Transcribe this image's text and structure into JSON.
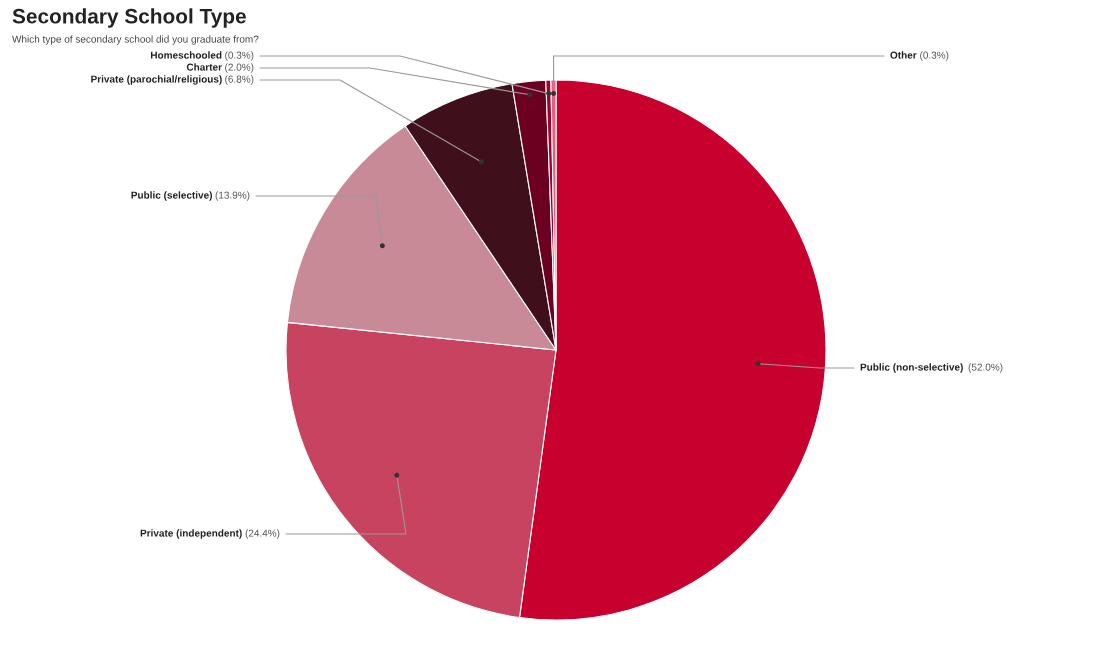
{
  "chart_data": {
    "type": "pie",
    "title": "Secondary School Type",
    "subtitle": "Which type of secondary school did you graduate from?",
    "categories": [
      "Public (non-selective)",
      "Private (independent)",
      "Public (selective)",
      "Private (parochial/religious)",
      "Charter",
      "Homeschooled",
      "Other"
    ],
    "values": [
      52.0,
      24.4,
      13.9,
      6.8,
      2.0,
      0.3,
      0.3
    ],
    "value_labels": [
      "(52.0%)",
      "(24.4%)",
      "(13.9%)",
      "(6.8%)",
      "(2.0%)",
      "(0.3%)",
      "(0.3%)"
    ],
    "colors": [
      "#c8002e",
      "#c84360",
      "#c98a98",
      "#3f0f1c",
      "#6b0020",
      "#a3002a",
      "#e06080"
    ]
  }
}
